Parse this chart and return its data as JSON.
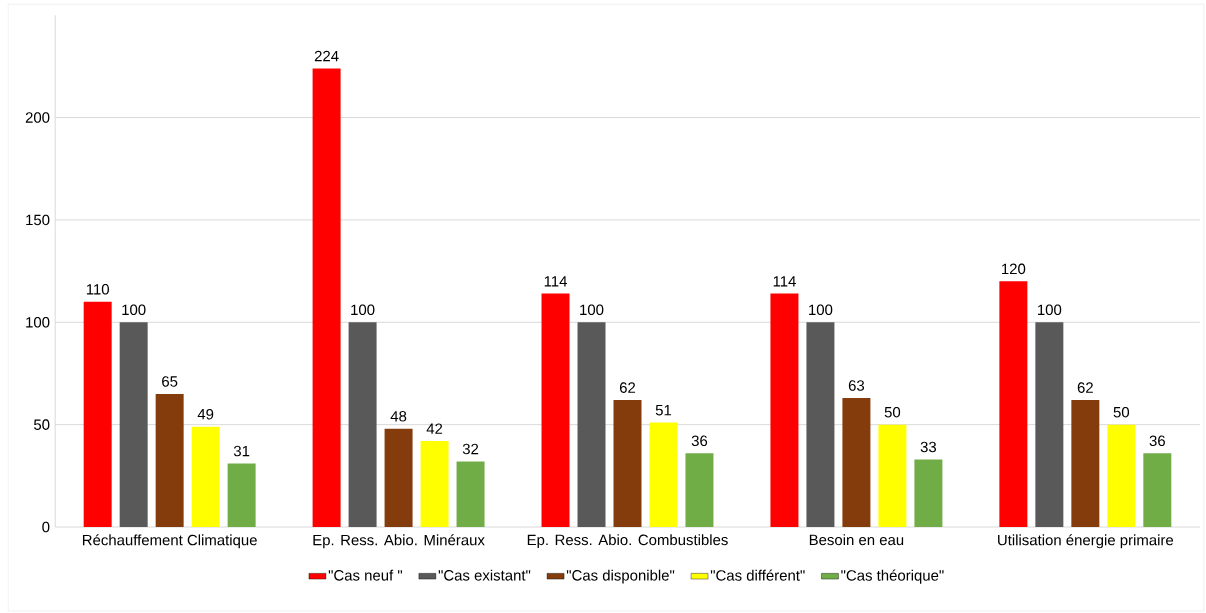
{
  "chart_data": {
    "type": "bar",
    "categories": [
      "Réchauffement  Climatique",
      "Ep. Ress. Abio. Minéraux",
      "Ep. Ress. Abio. Combustibles",
      "Besoin en eau",
      "Utilisation énergie primaire"
    ],
    "series": [
      {
        "name": "\"Cas neuf \"",
        "color": "#ff0000",
        "values": [
          110,
          224,
          114,
          114,
          120
        ]
      },
      {
        "name": "\"Cas existant\"",
        "color": "#595959",
        "values": [
          100,
          100,
          100,
          100,
          100
        ]
      },
      {
        "name": "\"Cas disponible\"",
        "color": "#843c0c",
        "values": [
          65,
          48,
          62,
          63,
          62
        ]
      },
      {
        "name": "\"Cas différent\"",
        "color": "#ffff00",
        "values": [
          49,
          42,
          51,
          50,
          50
        ]
      },
      {
        "name": "\"Cas théorique\"",
        "color": "#70ad47",
        "values": [
          31,
          32,
          36,
          33,
          36
        ]
      }
    ],
    "ylim": [
      0,
      250
    ],
    "yticks": [
      0,
      50,
      100,
      150,
      200
    ],
    "grid": "y",
    "legend": "bottom",
    "data_labels": true
  }
}
